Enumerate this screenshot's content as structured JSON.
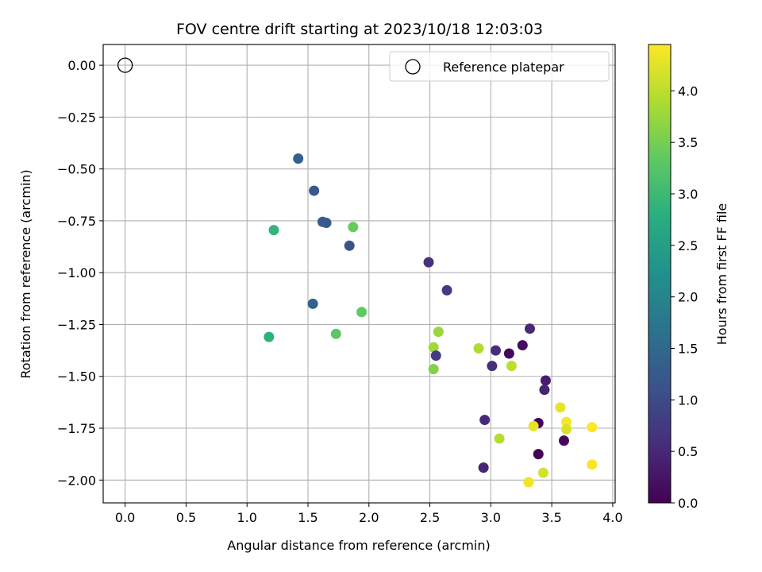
{
  "chart_data": {
    "type": "scatter",
    "title": "FOV centre drift starting at 2023/10/18 12:03:03",
    "xlabel": "Angular distance from reference (arcmin)",
    "ylabel": "Rotation from reference (arcmin)",
    "xlim": [
      -0.18,
      4.02
    ],
    "ylim": [
      -2.11,
      0.1
    ],
    "xticks": [
      0.0,
      0.5,
      1.0,
      1.5,
      2.0,
      2.5,
      3.0,
      3.5,
      4.0
    ],
    "xtick_labels": [
      "0.0",
      "0.5",
      "1.0",
      "1.5",
      "2.0",
      "2.5",
      "3.0",
      "3.5",
      "4.0"
    ],
    "yticks": [
      0.0,
      -0.25,
      -0.5,
      -0.75,
      -1.0,
      -1.25,
      -1.5,
      -1.75,
      -2.0
    ],
    "ytick_labels": [
      "0.00",
      "−0.25",
      "−0.50",
      "−0.75",
      "−1.00",
      "−1.25",
      "−1.50",
      "−1.75",
      "−2.00"
    ],
    "grid": true,
    "legend": {
      "placement": "top-right",
      "entries": [
        {
          "label": "Reference platepar",
          "marker": "hollow-circle"
        }
      ]
    },
    "reference_point": {
      "x": 0.0,
      "y": 0.0
    },
    "colorbar": {
      "label": "Hours from first FF file",
      "colormap": "viridis",
      "range": [
        0.0,
        4.45
      ],
      "ticks": [
        0.0,
        0.5,
        1.0,
        1.5,
        2.0,
        2.5,
        3.0,
        3.5,
        4.0
      ],
      "tick_labels": [
        "0.0",
        "0.5",
        "1.0",
        "1.5",
        "2.0",
        "2.5",
        "3.0",
        "3.5",
        "4.0"
      ]
    },
    "points": [
      {
        "x": 1.42,
        "y": -0.45,
        "hours": 1.35
      },
      {
        "x": 1.55,
        "y": -0.605,
        "hours": 1.2
      },
      {
        "x": 1.62,
        "y": -0.755,
        "hours": 1.3
      },
      {
        "x": 1.65,
        "y": -0.76,
        "hours": 1.25
      },
      {
        "x": 1.84,
        "y": -0.87,
        "hours": 1.15
      },
      {
        "x": 1.54,
        "y": -1.15,
        "hours": 1.4
      },
      {
        "x": 1.22,
        "y": -0.795,
        "hours": 2.9
      },
      {
        "x": 1.18,
        "y": -1.31,
        "hours": 2.85
      },
      {
        "x": 1.87,
        "y": -0.78,
        "hours": 3.4
      },
      {
        "x": 1.94,
        "y": -1.19,
        "hours": 3.35
      },
      {
        "x": 1.73,
        "y": -1.295,
        "hours": 3.3
      },
      {
        "x": 2.49,
        "y": -0.95,
        "hours": 0.65
      },
      {
        "x": 2.64,
        "y": -1.085,
        "hours": 0.75
      },
      {
        "x": 2.57,
        "y": -1.285,
        "hours": 3.75
      },
      {
        "x": 2.53,
        "y": -1.36,
        "hours": 3.8
      },
      {
        "x": 2.55,
        "y": -1.4,
        "hours": 0.8
      },
      {
        "x": 2.53,
        "y": -1.465,
        "hours": 3.6
      },
      {
        "x": 2.9,
        "y": -1.365,
        "hours": 3.9
      },
      {
        "x": 3.04,
        "y": -1.375,
        "hours": 0.55
      },
      {
        "x": 3.15,
        "y": -1.39,
        "hours": 0.1
      },
      {
        "x": 3.26,
        "y": -1.35,
        "hours": 0.15
      },
      {
        "x": 3.32,
        "y": -1.27,
        "hours": 0.5
      },
      {
        "x": 3.01,
        "y": -1.45,
        "hours": 0.6
      },
      {
        "x": 3.17,
        "y": -1.45,
        "hours": 4.0
      },
      {
        "x": 3.45,
        "y": -1.52,
        "hours": 0.35
      },
      {
        "x": 3.44,
        "y": -1.565,
        "hours": 0.45
      },
      {
        "x": 2.95,
        "y": -1.71,
        "hours": 0.5
      },
      {
        "x": 3.39,
        "y": -1.725,
        "hours": 0.05
      },
      {
        "x": 3.35,
        "y": -1.74,
        "hours": 4.3
      },
      {
        "x": 3.07,
        "y": -1.8,
        "hours": 3.95
      },
      {
        "x": 3.57,
        "y": -1.65,
        "hours": 4.3
      },
      {
        "x": 3.62,
        "y": -1.72,
        "hours": 4.4
      },
      {
        "x": 3.62,
        "y": -1.755,
        "hours": 4.2
      },
      {
        "x": 3.6,
        "y": -1.81,
        "hours": 0.1
      },
      {
        "x": 3.39,
        "y": -1.875,
        "hours": 0.02
      },
      {
        "x": 3.83,
        "y": -1.745,
        "hours": 4.45
      },
      {
        "x": 3.83,
        "y": -1.925,
        "hours": 4.4
      },
      {
        "x": 2.94,
        "y": -1.94,
        "hours": 0.45
      },
      {
        "x": 3.43,
        "y": -1.965,
        "hours": 4.15
      },
      {
        "x": 3.31,
        "y": -2.01,
        "hours": 4.35
      }
    ]
  }
}
